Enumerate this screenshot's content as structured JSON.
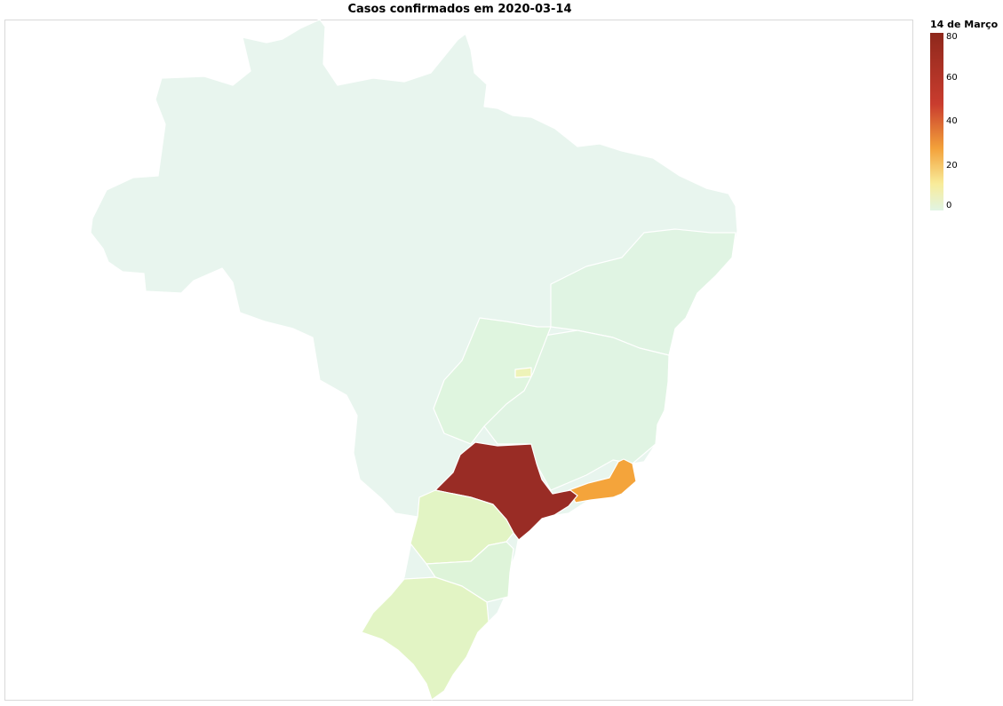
{
  "title": "Casos confirmados em 2020-03-14",
  "legend": {
    "title": "14 de Março",
    "ticks": [
      "80",
      "60",
      "40",
      "20",
      "0"
    ],
    "range": [
      0,
      80
    ],
    "colors": [
      "#e1f4e3",
      "#f8ec9a",
      "#f3a13a",
      "#c93c2e",
      "#8e281c"
    ]
  },
  "map": {
    "region": "Brasil",
    "states": [
      {
        "name": "SP",
        "color": "#992c25"
      },
      {
        "name": "RJ",
        "color": "#f4a43b"
      },
      {
        "name": "PR",
        "color": "#e2f4c4"
      },
      {
        "name": "RS",
        "color": "#e2f4c4"
      },
      {
        "name": "SC",
        "color": "#def4d9"
      },
      {
        "name": "DF",
        "color": "#eef3b8"
      },
      {
        "name": "MG",
        "color": "#e0f4e3"
      },
      {
        "name": "GO",
        "color": "#dff5df"
      },
      {
        "name": "BA",
        "color": "#e0f4e3"
      },
      {
        "name": "MS",
        "color": "#e8f5ee"
      },
      {
        "name": "AM",
        "color": "#e8f5ee"
      }
    ]
  }
}
